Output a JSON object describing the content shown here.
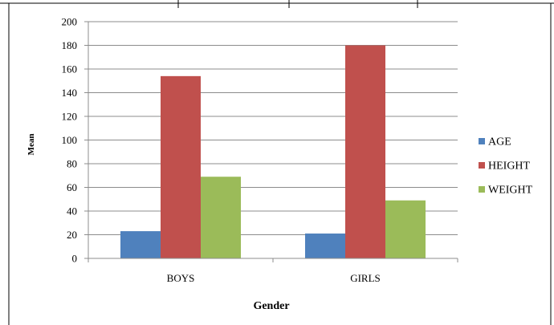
{
  "chart_data": {
    "type": "bar",
    "categories": [
      "BOYS",
      "GIRLS"
    ],
    "series": [
      {
        "name": "AGE",
        "values": [
          23,
          21
        ],
        "color": "#4F81BD"
      },
      {
        "name": "HEIGHT",
        "values": [
          154,
          180
        ],
        "color": "#C0504D"
      },
      {
        "name": "WEIGHT",
        "values": [
          69,
          49
        ],
        "color": "#9BBB59"
      }
    ],
    "title": "",
    "xlabel": "Gender",
    "ylabel": "Mean",
    "ylim": [
      0,
      200
    ],
    "yticks": [
      "0",
      "20",
      "40",
      "60",
      "80",
      "100",
      "120",
      "140",
      "160",
      "180",
      "200"
    ],
    "grid": true,
    "legend_position": "right"
  }
}
